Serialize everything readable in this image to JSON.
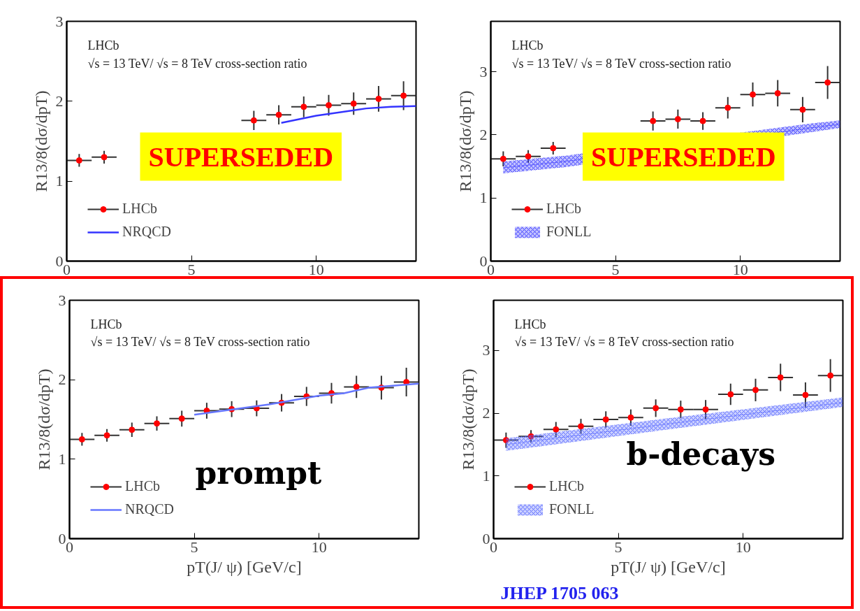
{
  "chart_data": [
    {
      "type": "scatter",
      "ylabel": "R13/8(dσ/dpT)",
      "xlim": [
        0,
        14
      ],
      "ylim": [
        0,
        3
      ],
      "xticks": [
        0,
        5,
        10
      ],
      "yticks": [
        0,
        1,
        2,
        3
      ],
      "legend": "bottom left",
      "grid": false,
      "marker": "circle",
      "annotations": [
        "LHCb",
        "√s = 13 TeV/ √s = 8 TeV cross-section ratio",
        "SUPERSEDED"
      ],
      "x": [
        0.5,
        1.5,
        2.5,
        3.5,
        4.5,
        5.5,
        6.5,
        7.5,
        8.5,
        9.5,
        10.5,
        11.5,
        12.5,
        13.5
      ],
      "series": [
        {
          "name": "LHCb",
          "color": "#ff0000",
          "values": [
            1.26,
            1.3,
            null,
            null,
            null,
            null,
            null,
            1.76,
            1.83,
            1.93,
            1.95,
            1.97,
            2.03,
            2.07
          ],
          "errors": [
            0.08,
            0.08,
            null,
            null,
            null,
            null,
            null,
            0.12,
            0.12,
            0.13,
            0.13,
            0.14,
            0.16,
            0.18
          ],
          "xerrors": [
            0.5,
            0.5,
            null,
            null,
            null,
            null,
            null,
            0.5,
            0.5,
            0.5,
            0.5,
            0.5,
            0.5,
            0.5
          ]
        },
        {
          "name": "NRQCD",
          "type": "line",
          "marker": "none",
          "color": "#3333ff",
          "x": [
            8.6,
            10,
            12,
            13,
            14
          ],
          "values": [
            1.73,
            1.82,
            1.91,
            1.93,
            1.94
          ]
        }
      ]
    },
    {
      "type": "scatter",
      "ylabel": "R13/8(dσ/dpT)",
      "xlim": [
        0,
        14
      ],
      "ylim": [
        0,
        3.8
      ],
      "xticks": [
        0,
        5,
        10
      ],
      "yticks": [
        0,
        1,
        2,
        3
      ],
      "legend": "bottom left",
      "grid": false,
      "marker": "circle",
      "annotations": [
        "LHCb",
        "√s = 13 TeV/ √s = 8 TeV cross-section ratio",
        "SUPERSEDED"
      ],
      "x": [
        0.5,
        1.5,
        2.5,
        3.5,
        4.5,
        5.5,
        6.5,
        7.5,
        8.5,
        9.5,
        10.5,
        11.5,
        12.5,
        13.5
      ],
      "series": [
        {
          "name": "LHCb",
          "color": "#ff0000",
          "values": [
            1.62,
            1.66,
            1.79,
            null,
            null,
            null,
            2.22,
            2.25,
            2.22,
            2.43,
            2.64,
            2.66,
            2.4,
            2.83
          ],
          "errors": [
            0.12,
            0.1,
            0.1,
            null,
            null,
            null,
            0.15,
            0.15,
            0.14,
            0.17,
            0.19,
            0.21,
            0.2,
            0.26
          ],
          "xerrors": [
            0.5,
            0.5,
            0.5,
            null,
            null,
            null,
            0.5,
            0.5,
            0.5,
            0.5,
            0.5,
            0.5,
            0.5,
            0.5
          ]
        },
        {
          "name": "FONLL",
          "type": "line",
          "marker": "none",
          "color": "#3333ff",
          "x": [
            0.5,
            3.0,
            12.8,
            14
          ],
          "values": [
            1.48,
            1.58,
            2.11,
            2.17
          ],
          "lower": [
            1.39,
            1.49,
            2.04,
            2.11
          ],
          "upper": [
            1.58,
            1.67,
            2.18,
            2.23
          ]
        }
      ]
    },
    {
      "type": "scatter",
      "ylabel": "R13/8(dσ/dpT)",
      "xlabel": "pT(J/ ψ) [GeV/c]",
      "xlim": [
        0,
        14
      ],
      "ylim": [
        0,
        3
      ],
      "xticks": [
        0,
        5,
        10
      ],
      "yticks": [
        0,
        1,
        2,
        3
      ],
      "legend": "bottom left",
      "grid": false,
      "marker": "circle",
      "annotations": [
        "LHCb",
        "√s = 13 TeV/ √s = 8 TeV cross-section ratio",
        "prompt"
      ],
      "x": [
        0.5,
        1.5,
        2.5,
        3.5,
        4.5,
        5.5,
        6.5,
        7.5,
        8.5,
        9.5,
        10.5,
        11.5,
        12.5,
        13.5
      ],
      "series": [
        {
          "name": "LHCb",
          "color": "#ff0000",
          "values": [
            1.25,
            1.3,
            1.37,
            1.45,
            1.51,
            1.61,
            1.63,
            1.64,
            1.71,
            1.79,
            1.83,
            1.91,
            1.9,
            1.97
          ],
          "errors": [
            0.08,
            0.08,
            0.09,
            0.09,
            0.1,
            0.1,
            0.1,
            0.1,
            0.11,
            0.12,
            0.13,
            0.14,
            0.15,
            0.18
          ],
          "xerrors": [
            0.5,
            0.5,
            0.5,
            0.5,
            0.5,
            0.5,
            0.5,
            0.5,
            0.5,
            0.5,
            0.5,
            0.5,
            0.5,
            0.5
          ]
        },
        {
          "name": "NRQCD",
          "type": "line",
          "marker": "none",
          "color": "#6677ff",
          "x": [
            5,
            8,
            10,
            11,
            12,
            14
          ],
          "values": [
            1.56,
            1.69,
            1.8,
            1.83,
            1.9,
            1.95
          ]
        }
      ]
    },
    {
      "type": "scatter",
      "ylabel": "R13/8(dσ/dpT)",
      "xlabel": "pT(J/ ψ) [GeV/c]",
      "xlim": [
        0,
        14
      ],
      "ylim": [
        0,
        3.8
      ],
      "xticks": [
        0,
        5,
        10
      ],
      "yticks": [
        0,
        1,
        2,
        3
      ],
      "legend": "bottom left",
      "grid": false,
      "marker": "circle",
      "annotations": [
        "LHCb",
        "√s = 13 TeV/ √s = 8 TeV cross-section ratio",
        "b-decays",
        "JHEP 1705 063"
      ],
      "x": [
        0.5,
        1.5,
        2.5,
        3.5,
        4.5,
        5.5,
        6.5,
        7.5,
        8.5,
        9.5,
        10.5,
        11.5,
        12.5,
        13.5
      ],
      "series": [
        {
          "name": "LHCb",
          "color": "#ff0000",
          "values": [
            1.57,
            1.63,
            1.74,
            1.79,
            1.9,
            1.93,
            2.08,
            2.06,
            2.06,
            2.3,
            2.37,
            2.57,
            2.29,
            2.6
          ],
          "errors": [
            0.12,
            0.1,
            0.12,
            0.12,
            0.13,
            0.13,
            0.14,
            0.14,
            0.15,
            0.17,
            0.18,
            0.22,
            0.2,
            0.26
          ],
          "xerrors": [
            0.5,
            0.5,
            0.5,
            0.5,
            0.5,
            0.5,
            0.5,
            0.5,
            0.5,
            0.5,
            0.5,
            0.5,
            0.5,
            0.5
          ]
        },
        {
          "name": "FONLL",
          "type": "line",
          "marker": "none",
          "color": "#5566ff",
          "x": [
            0.5,
            7,
            14
          ],
          "values": [
            1.5,
            1.83,
            2.17
          ],
          "lower": [
            1.4,
            1.74,
            2.1
          ],
          "upper": [
            1.6,
            1.92,
            2.25
          ]
        }
      ]
    }
  ]
}
